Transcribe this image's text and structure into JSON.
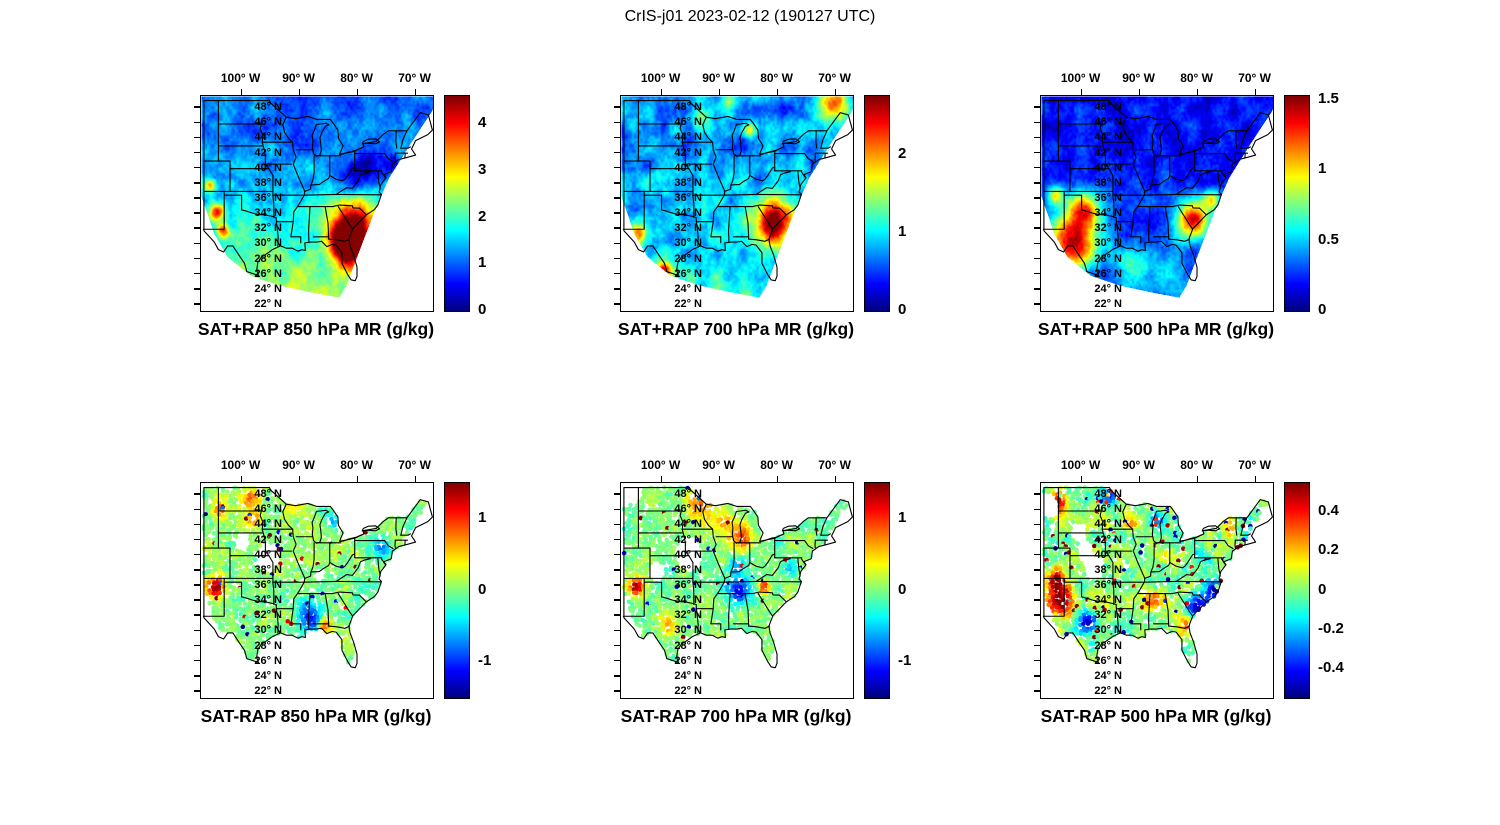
{
  "figure": {
    "title": "CrIS-j01 2023-02-12 (190127 UTC)"
  },
  "chart_data": {
    "type": "heatmap",
    "subtype": "geographic map grid, 2 rows x 3 columns, jet colormap",
    "colormap": "jet",
    "axes": {
      "x_tick_labels": [
        "100° W",
        "90° W",
        "80° W",
        "70° W"
      ],
      "x_tick_values": [
        100,
        90,
        80,
        70
      ],
      "y_tick_labels": [
        "48° N",
        "46° N",
        "44° N",
        "42° N",
        "40° N",
        "38° N",
        "36° N",
        "34° N",
        "32° N",
        "30° N",
        "28° N",
        "26° N",
        "24° N",
        "22° N"
      ],
      "y_tick_values": [
        48,
        46,
        44,
        42,
        40,
        38,
        36,
        34,
        32,
        30,
        28,
        26,
        24,
        22
      ],
      "lon_range_deg_west": [
        107,
        67
      ],
      "lat_range_deg_north": [
        21.2,
        49.6
      ],
      "grid": false
    },
    "panels": [
      {
        "title": "SAT+RAP 850 hPa MR (g/kg)",
        "colorbar": {
          "tick_labels": [
            "0",
            "1",
            "2",
            "3",
            "4"
          ],
          "tick_values": [
            0,
            1,
            2,
            3,
            4
          ],
          "range": [
            0,
            4.6
          ]
        },
        "description": "850 hPa mixing ratio retrieval+model: 0.5-2 g/kg (blue/cyan) over the north, 2-3 g/kg (green) central south, >4 g/kg (dark red) maximum over Georgia/Carolinas and Florida, local maxima in west Texas / New Mexico.",
        "render": {
          "mode": "field",
          "clip": "swath",
          "seed": 11,
          "base": [
            0.23,
            0.3
          ],
          "noise": 0.13,
          "blobs": [
            [
              80.8,
              32.3,
              3.8,
              0.72
            ],
            [
              82.5,
              30.5,
              2.5,
              0.5
            ],
            [
              81.5,
              28.5,
              2.0,
              0.35
            ],
            [
              104.2,
              34.3,
              1.3,
              0.5
            ],
            [
              103.2,
              31.8,
              1.1,
              0.45
            ],
            [
              105.5,
              37.8,
              1.0,
              0.4
            ],
            [
              79.5,
              39.5,
              3.0,
              -0.22
            ],
            [
              75.5,
              40.5,
              2.5,
              -0.18
            ]
          ]
        }
      },
      {
        "title": "SAT+RAP 700 hPa MR (g/kg)",
        "colorbar": {
          "tick_labels": [
            "0",
            "1",
            "2"
          ],
          "tick_values": [
            0,
            1,
            2
          ],
          "range": [
            0,
            2.75
          ]
        },
        "description": "700 hPa mixing ratio: mostly 0.3-1 g/kg (blue) with cyan mottling, dark-red maximum >2.5 g/kg over Georgia/Carolinas, orange band in the far northeast corner, warm spots near lower Michigan and the southwest edge.",
        "render": {
          "mode": "field",
          "clip": "swath",
          "seed": 22,
          "base": [
            0.27,
            0.12
          ],
          "noise": 0.16,
          "blobs": [
            [
              80.7,
              33.0,
              3.4,
              0.7
            ],
            [
              70.5,
              48.8,
              2.6,
              0.5
            ],
            [
              85.0,
              45.2,
              1.2,
              0.4
            ],
            [
              104.0,
              31.5,
              1.6,
              0.5
            ],
            [
              99.6,
              26.6,
              1.4,
              0.45
            ],
            [
              93.0,
              47.0,
              2.0,
              0.2
            ],
            [
              88.5,
              48.8,
              1.5,
              0.3
            ]
          ]
        }
      },
      {
        "title": "SAT+RAP 500 hPa MR (g/kg)",
        "colorbar": {
          "tick_labels": [
            "0",
            "0.5",
            "1",
            "1.5"
          ],
          "tick_values": [
            0,
            0.5,
            1,
            1.5
          ],
          "range": [
            0,
            1.53
          ]
        },
        "description": "500 hPa mixing ratio: deep blue (<0.3 g/kg) across the north, broad warm (red/orange >1 g/kg) region over Texas/Oklahoma, dark-red maximum over Georgia/Carolinas, yellow-green arc along the Gulf coast.",
        "render": {
          "mode": "field",
          "clip": "swath",
          "seed": 33,
          "base": [
            0.13,
            0.1
          ],
          "noise": 0.11,
          "blobs": [
            [
              101.5,
              30.5,
              4.2,
              0.75
            ],
            [
              99.5,
              34.8,
              2.6,
              0.55
            ],
            [
              104.5,
              36.5,
              1.4,
              0.45
            ],
            [
              80.7,
              33.3,
              3.0,
              0.7
            ],
            [
              77.5,
              36.0,
              1.5,
              0.4
            ],
            [
              91.0,
              27.0,
              3.0,
              0.25
            ],
            [
              85.0,
              26.5,
              2.5,
              0.2
            ]
          ]
        }
      },
      {
        "title": "SAT-RAP 850 hPa MR (g/kg)",
        "colorbar": {
          "tick_labels": [
            "-1",
            "0",
            "1"
          ],
          "tick_values": [
            -1,
            0,
            1
          ],
          "range": [
            -1.5,
            1.5
          ]
        },
        "description": "850 hPa difference (satellite minus model): scattered footprints mostly near 0 (green), dark-red positive cluster in east New Mexico / west Texas, red streaks over the northern plains, blue negatives along the central Gulf coast.",
        "render": {
          "mode": "dots",
          "clip": "land",
          "seed": 44,
          "noise": 0.1,
          "outlier": 0.02,
          "blobs": [
            [
              104.4,
              35.8,
              1.6,
              0.5
            ],
            [
              98.3,
              47.5,
              1.8,
              0.28
            ],
            [
              97.8,
              44.8,
              1.4,
              0.22
            ],
            [
              103.5,
              46.0,
              1.5,
              0.25
            ],
            [
              91.0,
              47.6,
              1.6,
              0.18
            ],
            [
              87.6,
              31.3,
              1.8,
              -0.38
            ],
            [
              85.8,
              30.8,
              1.2,
              0.35
            ],
            [
              89.0,
              33.0,
              1.5,
              -0.2
            ],
            [
              75.8,
              41.2,
              1.4,
              -0.3
            ],
            [
              84.0,
              44.5,
              1.0,
              -0.25
            ]
          ],
          "holes": [
            [
              95.5,
              39.7,
              2.0
            ],
            [
              99.8,
              41.8,
              1.3
            ],
            [
              86.5,
              37.5,
              1.0
            ]
          ]
        }
      },
      {
        "title": "SAT-RAP 700 hPa MR (g/kg)",
        "colorbar": {
          "tick_labels": [
            "-1",
            "0",
            "1"
          ],
          "tick_values": [
            -1,
            0,
            1
          ],
          "range": [
            -1.5,
            1.5
          ]
        },
        "description": "700 hPa difference: mostly near-zero green footprints, orange/red patches over the upper Midwest and Great Lakes, blue negative streak through Tennessee/Alabama, dark-red cluster in east New Mexico.",
        "render": {
          "mode": "dots",
          "clip": "land",
          "seed": 55,
          "noise": 0.1,
          "outlier": 0.02,
          "blobs": [
            [
              104.4,
              35.9,
              1.3,
              0.5
            ],
            [
              93.5,
              46.8,
              2.6,
              0.25
            ],
            [
              86.2,
              42.3,
              2.2,
              0.28
            ],
            [
              89.5,
              44.5,
              1.8,
              0.2
            ],
            [
              86.8,
              35.2,
              2.0,
              -0.38
            ],
            [
              87.0,
              38.5,
              1.5,
              -0.25
            ],
            [
              82.3,
              35.8,
              0.9,
              0.4
            ],
            [
              77.5,
              38.5,
              1.5,
              -0.15
            ],
            [
              99.0,
              31.0,
              1.5,
              0.2
            ]
          ],
          "holes": [
            [
              95.2,
              40.2,
              2.3
            ],
            [
              105.3,
              48.5,
              1.8
            ],
            [
              101.0,
              37.8,
              1.3
            ]
          ]
        }
      },
      {
        "title": "SAT-RAP 500 hPa MR (g/kg)",
        "colorbar": {
          "tick_labels": [
            "-0.4",
            "-0.2",
            "0",
            "0.2",
            "0.4"
          ],
          "tick_values": [
            -0.4,
            -0.2,
            0,
            0.2,
            0.4
          ],
          "range": [
            -0.55,
            0.55
          ]
        },
        "description": "500 hPa difference: higher relative variability; large dark-red positive cluster over west Texas / New Mexico, blue negatives over south Texas and along the Carolina coast, mixed red/blue mottling across the northern tier.",
        "render": {
          "mode": "dots",
          "clip": "land",
          "seed": 66,
          "noise": 0.17,
          "outlier": 0.05,
          "blobs": [
            [
              103.8,
              33.8,
              2.2,
              0.55
            ],
            [
              104.3,
              36.6,
              1.4,
              0.5
            ],
            [
              98.7,
              31.2,
              1.6,
              -0.45
            ],
            [
              104.0,
              47.0,
              1.8,
              0.35
            ],
            [
              95.0,
              47.8,
              1.5,
              -0.3
            ],
            [
              84.5,
              48.6,
              2.0,
              0.3
            ],
            [
              77.2,
              35.3,
              1.8,
              -0.45
            ],
            [
              80.2,
              33.0,
              1.6,
              -0.4
            ],
            [
              82.0,
              30.8,
              1.5,
              0.3
            ],
            [
              88.0,
              34.0,
              1.8,
              0.25
            ],
            [
              91.5,
              44.5,
              1.5,
              0.25
            ],
            [
              87.0,
              44.8,
              1.3,
              -0.3
            ],
            [
              74.5,
              44.0,
              1.5,
              0.3
            ]
          ],
          "holes": [
            [
              97.8,
              38.6,
              1.8
            ],
            [
              100.3,
              43.0,
              1.3
            ],
            [
              105.6,
              46.5,
              1.6
            ],
            [
              99.5,
              40.5,
              1.2
            ]
          ]
        }
      }
    ]
  }
}
